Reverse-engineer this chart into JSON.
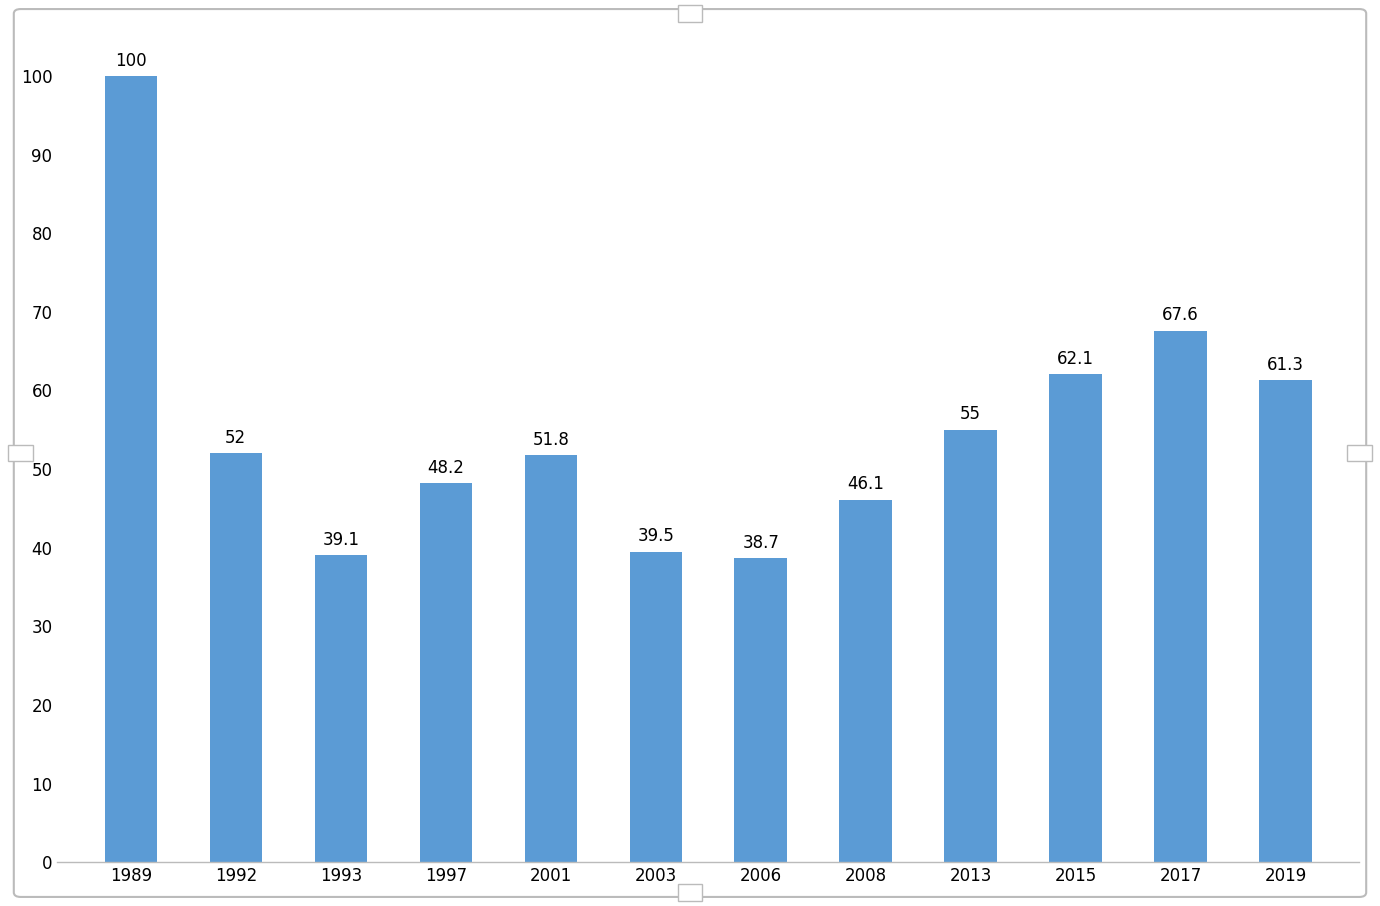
{
  "categories": [
    "1989",
    "1992",
    "1993",
    "1997",
    "2001",
    "2003",
    "2006",
    "2008",
    "2013",
    "2015",
    "2017",
    "2019"
  ],
  "values": [
    100,
    52,
    39.1,
    48.2,
    51.8,
    39.5,
    38.7,
    46.1,
    55,
    62.1,
    67.6,
    61.3
  ],
  "bar_color": "#5B9BD5",
  "ylim": [
    0,
    107
  ],
  "yticks": [
    0,
    10,
    20,
    30,
    40,
    50,
    60,
    70,
    80,
    90,
    100
  ],
  "bar_width": 0.5,
  "label_fontsize": 12,
  "tick_fontsize": 12,
  "background_color": "#ffffff",
  "figure_background": "#ffffff",
  "border_color": "#bbbbbb",
  "handle_color": "#dddddd",
  "spine_color": "#bbbbbb"
}
